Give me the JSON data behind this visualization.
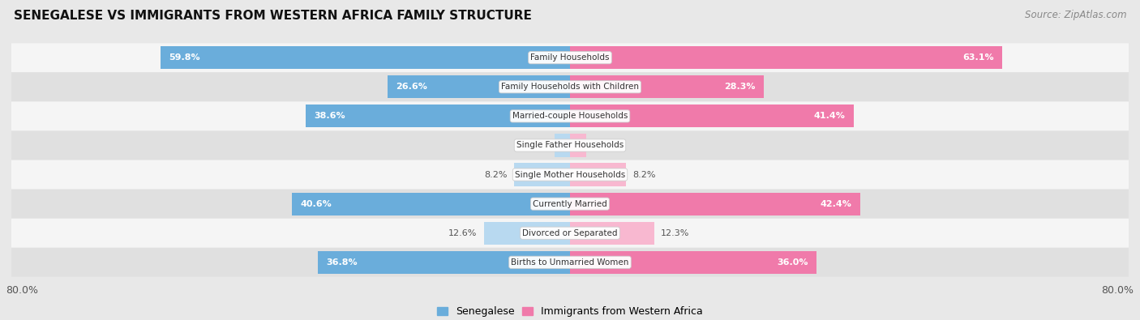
{
  "title": "SENEGALESE VS IMMIGRANTS FROM WESTERN AFRICA FAMILY STRUCTURE",
  "source": "Source: ZipAtlas.com",
  "categories": [
    "Family Households",
    "Family Households with Children",
    "Married-couple Households",
    "Single Father Households",
    "Single Mother Households",
    "Currently Married",
    "Divorced or Separated",
    "Births to Unmarried Women"
  ],
  "senegalese": [
    59.8,
    26.6,
    38.6,
    2.3,
    8.2,
    40.6,
    12.6,
    36.8
  ],
  "immigrants": [
    63.1,
    28.3,
    41.4,
    2.4,
    8.2,
    42.4,
    12.3,
    36.0
  ],
  "max_val": 80.0,
  "bar_height": 0.78,
  "color_senegalese": "#6aaddb",
  "color_immigrants": "#f07aaa",
  "color_senegalese_light": "#b8d9f0",
  "color_immigrants_light": "#f8b8d0",
  "bg_color": "#e8e8e8",
  "row_bg_odd": "#f5f5f5",
  "row_bg_even": "#e0e0e0",
  "legend_sene": "Senegalese",
  "legend_immig": "Immigrants from Western Africa",
  "inside_label_threshold": 15.0
}
